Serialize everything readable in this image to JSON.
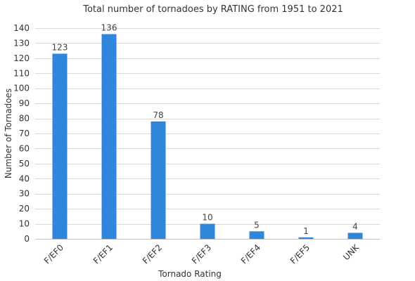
{
  "chart_data": {
    "type": "bar",
    "title": "Total number of tornadoes by RATING from 1951 to 2021",
    "xlabel": "Tornado Rating",
    "ylabel": "Number of Tornadoes",
    "categories": [
      "F/EF0",
      "F/EF1",
      "F/EF2",
      "F/EF3",
      "F/EF4",
      "F/EF5",
      "UNK"
    ],
    "values": [
      123,
      136,
      78,
      10,
      5,
      1,
      4
    ],
    "ylim": [
      0,
      140
    ],
    "yticks": [
      0,
      10,
      20,
      30,
      40,
      50,
      60,
      70,
      80,
      90,
      100,
      110,
      120,
      130,
      140
    ],
    "grid": true,
    "legend": "none",
    "bar_color": "#2f86dc"
  }
}
